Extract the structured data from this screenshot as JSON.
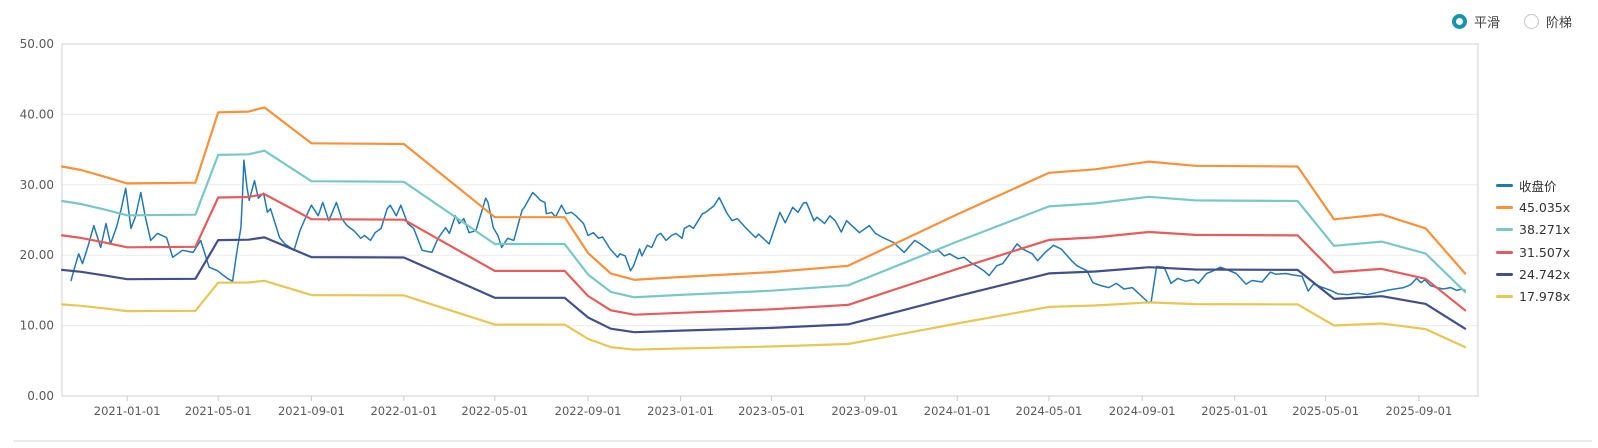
{
  "controls": {
    "smooth_label": "平滑",
    "step_label": "阶梯",
    "selected": "平滑",
    "accent_color": "#1693ad"
  },
  "legend": {
    "position": "right",
    "items": [
      {
        "key": "close-price",
        "label": "收盘价",
        "color": "#2478b2"
      },
      {
        "key": "45035x",
        "label": "45.035x",
        "color": "#f7913a"
      },
      {
        "key": "38271x",
        "label": "38.271x",
        "color": "#79c8c6"
      },
      {
        "key": "31507x",
        "label": "31.507x",
        "color": "#e45c5c"
      },
      {
        "key": "24742x",
        "label": "24.742x",
        "color": "#42508a"
      },
      {
        "key": "17978x",
        "label": "17.978x",
        "color": "#e8c654"
      }
    ]
  },
  "chart_data": {
    "type": "line",
    "title": "",
    "grid": "horizontal",
    "legend_position": "right",
    "x_axis": {
      "domain_start": "2020-10-07",
      "domain_end": "2025-11-18",
      "tick_labels": [
        "2021-01-01",
        "2021-05-01",
        "2021-09-01",
        "2022-01-01",
        "2022-05-01",
        "2022-09-01",
        "2023-01-01",
        "2023-05-01",
        "2023-09-01",
        "2024-01-01",
        "2024-05-01",
        "2024-09-01",
        "2025-01-01",
        "2025-05-01",
        "2025-09-01"
      ]
    },
    "y_axis": {
      "min": 0,
      "max": 50,
      "tick_step": 10,
      "tick_labels": [
        "0.00",
        "10.00",
        "20.00",
        "30.00",
        "40.00",
        "50.00"
      ]
    },
    "pe_bands": {
      "base_multiple": 45.035,
      "note": "band value = base_curve value × (multiple / 45.035)",
      "bands": [
        {
          "label": "45.035x",
          "multiple": 45.035,
          "color": "#f7913a"
        },
        {
          "label": "38.271x",
          "multiple": 38.271,
          "color": "#79c8c6"
        },
        {
          "label": "31.507x",
          "multiple": 31.507,
          "color": "#e45c5c"
        },
        {
          "label": "24.742x",
          "multiple": 24.742,
          "color": "#42508a"
        },
        {
          "label": "17.978x",
          "multiple": 17.978,
          "color": "#e8c654"
        }
      ],
      "base_curve": [
        [
          "2020-10-07",
          32.6
        ],
        [
          "2020-11-01",
          32.1
        ],
        [
          "2020-12-01",
          31.2
        ],
        [
          "2021-01-01",
          30.2
        ],
        [
          "2021-04-01",
          30.3
        ],
        [
          "2021-05-01",
          40.3
        ],
        [
          "2021-06-10",
          40.4
        ],
        [
          "2021-07-01",
          41.0
        ],
        [
          "2021-09-01",
          35.9
        ],
        [
          "2022-01-01",
          35.8
        ],
        [
          "2022-05-01",
          25.4
        ],
        [
          "2022-08-01",
          25.4
        ],
        [
          "2022-09-01",
          20.3
        ],
        [
          "2022-10-01",
          17.4
        ],
        [
          "2022-11-01",
          16.5
        ],
        [
          "2023-01-01",
          16.9
        ],
        [
          "2023-05-01",
          17.6
        ],
        [
          "2023-08-10",
          18.5
        ],
        [
          "2024-01-01",
          25.8
        ],
        [
          "2024-05-01",
          31.7
        ],
        [
          "2024-07-01",
          32.2
        ],
        [
          "2024-09-10",
          33.3
        ],
        [
          "2024-11-10",
          32.7
        ],
        [
          "2025-03-25",
          32.6
        ],
        [
          "2025-05-12",
          25.1
        ],
        [
          "2025-07-14",
          25.8
        ],
        [
          "2025-09-10",
          23.8
        ],
        [
          "2025-11-01",
          17.4
        ]
      ]
    },
    "series": [
      {
        "name": "收盘价",
        "kind": "price",
        "color": "#2478b2",
        "points": [
          [
            "2020-10-19",
            16.4
          ],
          [
            "2020-10-23",
            18.0
          ],
          [
            "2020-10-29",
            20.2
          ],
          [
            "2020-11-03",
            18.8
          ],
          [
            "2020-11-11",
            21.5
          ],
          [
            "2020-11-18",
            24.2
          ],
          [
            "2020-11-27",
            21.1
          ],
          [
            "2020-12-04",
            24.5
          ],
          [
            "2020-12-10",
            21.6
          ],
          [
            "2020-12-18",
            24.0
          ],
          [
            "2020-12-24",
            26.5
          ],
          [
            "2020-12-30",
            29.5
          ],
          [
            "2021-01-06",
            23.8
          ],
          [
            "2021-01-12",
            25.5
          ],
          [
            "2021-01-19",
            28.9
          ],
          [
            "2021-01-25",
            25.4
          ],
          [
            "2021-02-01",
            22.1
          ],
          [
            "2021-02-10",
            23.1
          ],
          [
            "2021-02-22",
            22.5
          ],
          [
            "2021-03-02",
            19.7
          ],
          [
            "2021-03-15",
            20.7
          ],
          [
            "2021-03-29",
            20.4
          ],
          [
            "2021-04-08",
            22.1
          ],
          [
            "2021-04-19",
            18.3
          ],
          [
            "2021-04-30",
            17.8
          ],
          [
            "2021-05-13",
            16.7
          ],
          [
            "2021-05-20",
            16.3
          ],
          [
            "2021-05-26",
            20.7
          ],
          [
            "2021-05-31",
            23.9
          ],
          [
            "2021-06-02",
            28.2
          ],
          [
            "2021-06-04",
            33.5
          ],
          [
            "2021-06-08",
            29.6
          ],
          [
            "2021-06-11",
            27.8
          ],
          [
            "2021-06-18",
            30.6
          ],
          [
            "2021-06-23",
            28.1
          ],
          [
            "2021-06-30",
            28.8
          ],
          [
            "2021-07-05",
            26.1
          ],
          [
            "2021-07-09",
            26.6
          ],
          [
            "2021-07-21",
            22.5
          ],
          [
            "2021-07-28",
            21.6
          ],
          [
            "2021-08-09",
            20.7
          ],
          [
            "2021-08-17",
            23.5
          ],
          [
            "2021-08-25",
            25.5
          ],
          [
            "2021-09-01",
            27.1
          ],
          [
            "2021-09-10",
            25.6
          ],
          [
            "2021-09-16",
            27.5
          ],
          [
            "2021-09-24",
            24.9
          ],
          [
            "2021-10-04",
            27.5
          ],
          [
            "2021-10-11",
            25.2
          ],
          [
            "2021-10-18",
            24.2
          ],
          [
            "2021-10-27",
            23.5
          ],
          [
            "2021-11-05",
            22.4
          ],
          [
            "2021-11-10",
            22.8
          ],
          [
            "2021-11-18",
            22.1
          ],
          [
            "2021-11-24",
            23.2
          ],
          [
            "2021-12-02",
            23.8
          ],
          [
            "2021-12-10",
            26.6
          ],
          [
            "2021-12-14",
            27.1
          ],
          [
            "2021-12-22",
            25.6
          ],
          [
            "2021-12-28",
            27.1
          ],
          [
            "2022-01-06",
            24.5
          ],
          [
            "2022-01-14",
            23.8
          ],
          [
            "2022-01-25",
            20.7
          ],
          [
            "2022-02-07",
            20.4
          ],
          [
            "2022-02-15",
            22.4
          ],
          [
            "2022-02-25",
            23.9
          ],
          [
            "2022-03-02",
            23.1
          ],
          [
            "2022-03-10",
            25.6
          ],
          [
            "2022-03-15",
            24.5
          ],
          [
            "2022-03-21",
            25.2
          ],
          [
            "2022-03-28",
            23.2
          ],
          [
            "2022-04-06",
            23.5
          ],
          [
            "2022-04-19",
            28.1
          ],
          [
            "2022-04-22",
            27.5
          ],
          [
            "2022-04-29",
            23.9
          ],
          [
            "2022-05-05",
            22.8
          ],
          [
            "2022-05-10",
            21.1
          ],
          [
            "2022-05-18",
            22.4
          ],
          [
            "2022-05-26",
            22.1
          ],
          [
            "2022-06-06",
            26.4
          ],
          [
            "2022-06-09",
            26.8
          ],
          [
            "2022-06-20",
            28.9
          ],
          [
            "2022-06-24",
            28.5
          ],
          [
            "2022-06-30",
            27.8
          ],
          [
            "2022-07-06",
            27.5
          ],
          [
            "2022-07-08",
            25.9
          ],
          [
            "2022-07-15",
            26.1
          ],
          [
            "2022-07-20",
            25.4
          ],
          [
            "2022-07-28",
            27.1
          ],
          [
            "2022-08-03",
            25.9
          ],
          [
            "2022-08-10",
            26.1
          ],
          [
            "2022-08-16",
            25.6
          ],
          [
            "2022-08-26",
            24.5
          ],
          [
            "2022-09-01",
            22.8
          ],
          [
            "2022-09-08",
            23.2
          ],
          [
            "2022-09-15",
            22.4
          ],
          [
            "2022-09-20",
            22.6
          ],
          [
            "2022-09-30",
            20.9
          ],
          [
            "2022-10-10",
            19.7
          ],
          [
            "2022-10-13",
            20.2
          ],
          [
            "2022-10-20",
            19.9
          ],
          [
            "2022-10-27",
            17.8
          ],
          [
            "2022-10-31",
            18.5
          ],
          [
            "2022-11-08",
            20.9
          ],
          [
            "2022-11-11",
            19.9
          ],
          [
            "2022-11-18",
            21.4
          ],
          [
            "2022-11-24",
            21.1
          ],
          [
            "2022-12-01",
            22.8
          ],
          [
            "2022-12-06",
            23.1
          ],
          [
            "2022-12-13",
            22.1
          ],
          [
            "2022-12-20",
            22.8
          ],
          [
            "2022-12-26",
            23.1
          ],
          [
            "2023-01-03",
            22.4
          ],
          [
            "2023-01-06",
            23.8
          ],
          [
            "2023-01-13",
            24.2
          ],
          [
            "2023-01-18",
            23.8
          ],
          [
            "2023-01-30",
            25.9
          ],
          [
            "2023-02-03",
            26.1
          ],
          [
            "2023-02-14",
            27.0
          ],
          [
            "2023-02-21",
            28.2
          ],
          [
            "2023-03-03",
            26.0
          ],
          [
            "2023-03-10",
            24.9
          ],
          [
            "2023-03-17",
            25.2
          ],
          [
            "2023-03-27",
            24.0
          ],
          [
            "2023-04-10",
            22.5
          ],
          [
            "2023-04-14",
            23.0
          ],
          [
            "2023-04-28",
            21.6
          ],
          [
            "2023-05-12",
            26.1
          ],
          [
            "2023-05-19",
            24.6
          ],
          [
            "2023-05-29",
            26.8
          ],
          [
            "2023-06-05",
            26.1
          ],
          [
            "2023-06-12",
            27.4
          ],
          [
            "2023-06-16",
            27.5
          ],
          [
            "2023-06-26",
            24.9
          ],
          [
            "2023-06-30",
            25.4
          ],
          [
            "2023-07-10",
            24.5
          ],
          [
            "2023-07-17",
            25.6
          ],
          [
            "2023-07-24",
            24.9
          ],
          [
            "2023-08-01",
            23.3
          ],
          [
            "2023-08-08",
            24.9
          ],
          [
            "2023-08-25",
            23.2
          ],
          [
            "2023-09-07",
            24.2
          ],
          [
            "2023-09-15",
            23.1
          ],
          [
            "2023-09-25",
            22.5
          ],
          [
            "2023-10-09",
            21.8
          ],
          [
            "2023-10-23",
            20.4
          ],
          [
            "2023-11-06",
            22.1
          ],
          [
            "2023-11-16",
            21.4
          ],
          [
            "2023-11-29",
            20.4
          ],
          [
            "2023-12-07",
            20.7
          ],
          [
            "2023-12-15",
            19.9
          ],
          [
            "2023-12-22",
            20.2
          ],
          [
            "2024-01-02",
            19.5
          ],
          [
            "2024-01-10",
            19.7
          ],
          [
            "2024-01-18",
            19.0
          ],
          [
            "2024-01-26",
            18.5
          ],
          [
            "2024-02-05",
            17.8
          ],
          [
            "2024-02-12",
            17.1
          ],
          [
            "2024-02-22",
            18.5
          ],
          [
            "2024-03-01",
            18.8
          ],
          [
            "2024-03-20",
            21.6
          ],
          [
            "2024-03-27",
            20.9
          ],
          [
            "2024-04-09",
            20.2
          ],
          [
            "2024-04-16",
            19.2
          ],
          [
            "2024-04-26",
            20.4
          ],
          [
            "2024-05-07",
            21.4
          ],
          [
            "2024-05-17",
            20.9
          ],
          [
            "2024-05-31",
            19.2
          ],
          [
            "2024-06-07",
            18.5
          ],
          [
            "2024-06-20",
            17.8
          ],
          [
            "2024-06-28",
            16.1
          ],
          [
            "2024-07-08",
            15.7
          ],
          [
            "2024-07-19",
            15.4
          ],
          [
            "2024-07-29",
            16.0
          ],
          [
            "2024-08-08",
            15.2
          ],
          [
            "2024-08-19",
            15.4
          ],
          [
            "2024-08-28",
            14.5
          ],
          [
            "2024-09-10",
            13.2
          ],
          [
            "2024-09-13",
            13.5
          ],
          [
            "2024-09-20",
            18.4
          ],
          [
            "2024-09-30",
            18.3
          ],
          [
            "2024-10-09",
            16.0
          ],
          [
            "2024-10-18",
            16.7
          ],
          [
            "2024-10-28",
            16.3
          ],
          [
            "2024-11-08",
            16.5
          ],
          [
            "2024-11-14",
            16.0
          ],
          [
            "2024-11-25",
            17.4
          ],
          [
            "2024-12-02",
            17.7
          ],
          [
            "2024-12-13",
            18.3
          ],
          [
            "2024-12-23",
            17.9
          ],
          [
            "2025-01-03",
            17.4
          ],
          [
            "2025-01-16",
            15.9
          ],
          [
            "2025-01-24",
            16.4
          ],
          [
            "2025-02-06",
            16.2
          ],
          [
            "2025-02-17",
            17.6
          ],
          [
            "2025-02-24",
            17.3
          ],
          [
            "2025-03-10",
            17.4
          ],
          [
            "2025-03-18",
            17.2
          ],
          [
            "2025-03-31",
            17.0
          ],
          [
            "2025-04-08",
            14.9
          ],
          [
            "2025-04-15",
            15.9
          ],
          [
            "2025-04-25",
            15.5
          ],
          [
            "2025-05-08",
            15.0
          ],
          [
            "2025-05-17",
            14.5
          ],
          [
            "2025-05-30",
            14.4
          ],
          [
            "2025-06-12",
            14.6
          ],
          [
            "2025-06-25",
            14.4
          ],
          [
            "2025-07-08",
            14.7
          ],
          [
            "2025-07-21",
            15.0
          ],
          [
            "2025-07-31",
            15.2
          ],
          [
            "2025-08-12",
            15.4
          ],
          [
            "2025-08-21",
            15.8
          ],
          [
            "2025-08-29",
            16.7
          ],
          [
            "2025-09-04",
            16.1
          ],
          [
            "2025-09-09",
            16.5
          ],
          [
            "2025-09-16",
            15.7
          ],
          [
            "2025-09-25",
            15.4
          ],
          [
            "2025-10-03",
            15.2
          ],
          [
            "2025-10-13",
            15.4
          ],
          [
            "2025-10-21",
            15.0
          ],
          [
            "2025-10-28",
            15.2
          ],
          [
            "2025-11-01",
            15.0
          ]
        ]
      }
    ]
  }
}
